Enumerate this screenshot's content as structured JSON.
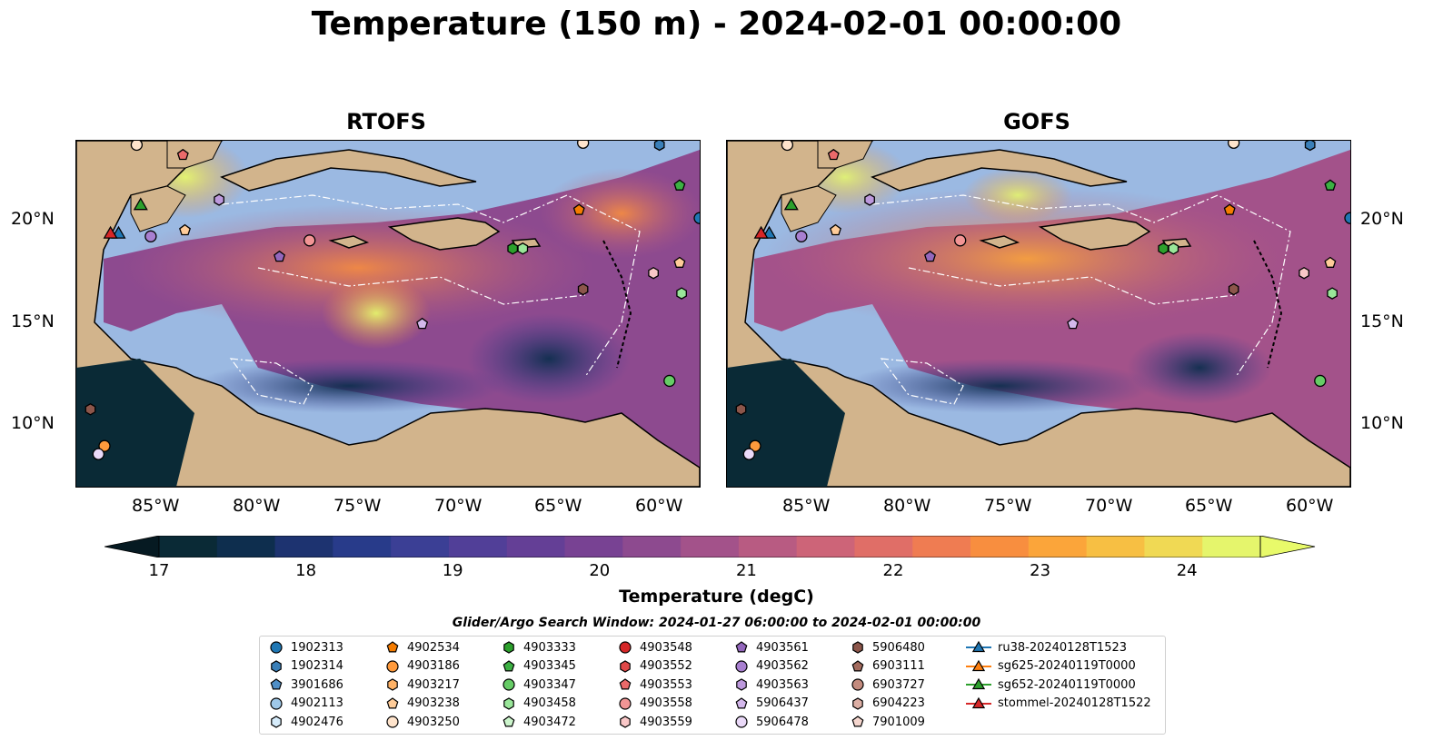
{
  "title": "Temperature (150 m) - 2024-02-01 00:00:00",
  "panels": [
    {
      "title": "RTOFS"
    },
    {
      "title": "GOFS"
    }
  ],
  "lon_ticks": [
    "85°W",
    "80°W",
    "75°W",
    "70°W",
    "65°W",
    "60°W"
  ],
  "lat_ticks": [
    "20°N",
    "15°N",
    "10°N"
  ],
  "colorbar": {
    "label": "Temperature (degC)",
    "min": 17,
    "max": 24.5,
    "tick_labels": [
      "17",
      "18",
      "19",
      "20",
      "21",
      "22",
      "23",
      "24"
    ],
    "colors": [
      "#0a2a36",
      "#0e2e4e",
      "#1d3370",
      "#283b8a",
      "#3b3f95",
      "#513f98",
      "#643f96",
      "#784293",
      "#8d4a8f",
      "#a3528a",
      "#b85b82",
      "#cd6478",
      "#e06e67",
      "#ef7c52",
      "#f88e3f",
      "#fba53a",
      "#f7bf43",
      "#f0d954",
      "#e5f56c"
    ],
    "under_color": "#061a22",
    "over_color": "#e8fa6a"
  },
  "search_window": "Glider/Argo Search Window: 2024-01-27 06:00:00 to 2024-02-01 00:00:00",
  "legend": [
    {
      "label": "1902313",
      "marker": "circle",
      "color": "#1f77b4"
    },
    {
      "label": "1902314",
      "marker": "hexagon",
      "color": "#3a7fb8"
    },
    {
      "label": "3901686",
      "marker": "pentagon",
      "color": "#4f8fc7"
    },
    {
      "label": "4902113",
      "marker": "circle",
      "color": "#9fc8e8"
    },
    {
      "label": "4902476",
      "marker": "hexagon",
      "color": "#d6ecfb"
    },
    {
      "label": "4902534",
      "marker": "pentagon",
      "color": "#f57c00"
    },
    {
      "label": "4903186",
      "marker": "circle",
      "color": "#ff9a3c"
    },
    {
      "label": "4903217",
      "marker": "hexagon",
      "color": "#ffb266"
    },
    {
      "label": "4903238",
      "marker": "pentagon",
      "color": "#ffcc99"
    },
    {
      "label": "4903250",
      "marker": "circle",
      "color": "#ffe4cc"
    },
    {
      "label": "4903333",
      "marker": "hexagon",
      "color": "#2ca02c"
    },
    {
      "label": "4903345",
      "marker": "pentagon",
      "color": "#3cb043"
    },
    {
      "label": "4903347",
      "marker": "circle",
      "color": "#66cc66"
    },
    {
      "label": "4903458",
      "marker": "hexagon",
      "color": "#99e699"
    },
    {
      "label": "4903472",
      "marker": "pentagon",
      "color": "#ccf5cc"
    },
    {
      "label": "4903548",
      "marker": "circle",
      "color": "#d62728"
    },
    {
      "label": "4903552",
      "marker": "hexagon",
      "color": "#e04848"
    },
    {
      "label": "4903553",
      "marker": "pentagon",
      "color": "#ea6a6a"
    },
    {
      "label": "4903558",
      "marker": "circle",
      "color": "#f29595"
    },
    {
      "label": "4903559",
      "marker": "hexagon",
      "color": "#f9c7c7"
    },
    {
      "label": "4903561",
      "marker": "pentagon",
      "color": "#9467bd"
    },
    {
      "label": "4903562",
      "marker": "circle",
      "color": "#a87fd0"
    },
    {
      "label": "4903563",
      "marker": "hexagon",
      "color": "#bd99dd"
    },
    {
      "label": "5906437",
      "marker": "pentagon",
      "color": "#d4b8ec"
    },
    {
      "label": "5906478",
      "marker": "circle",
      "color": "#ead9f8"
    },
    {
      "label": "5906480",
      "marker": "hexagon",
      "color": "#8c564b"
    },
    {
      "label": "6903111",
      "marker": "pentagon",
      "color": "#a36b5e"
    },
    {
      "label": "6903727",
      "marker": "circle",
      "color": "#c38b7e"
    },
    {
      "label": "6904223",
      "marker": "hexagon",
      "color": "#dcaea4"
    },
    {
      "label": "7901009",
      "marker": "pentagon",
      "color": "#f5d6ce"
    },
    {
      "label": "ru38-20240128T1523",
      "marker": "triangle-line",
      "color": "#1f77b4"
    },
    {
      "label": "sg625-20240119T0000",
      "marker": "triangle-line",
      "color": "#ff7f0e"
    },
    {
      "label": "sg652-20240119T0000",
      "marker": "triangle-line",
      "color": "#2ca02c"
    },
    {
      "label": "stommel-20240128T1522",
      "marker": "triangle-line",
      "color": "#d62728"
    }
  ],
  "map_markers": [
    {
      "ref": "1902313",
      "lon": -58.0,
      "lat": 20.2
    },
    {
      "ref": "1902314",
      "lon": -60.0,
      "lat": 23.8
    },
    {
      "ref": "4903345",
      "lon": -59.0,
      "lat": 21.8
    },
    {
      "ref": "4902534",
      "lon": -64.0,
      "lat": 20.6
    },
    {
      "ref": "4903333",
      "lon": -67.3,
      "lat": 18.7
    },
    {
      "ref": "4903458",
      "lon": -66.8,
      "lat": 18.7
    },
    {
      "ref": "4903238",
      "lon": -59.0,
      "lat": 18.0
    },
    {
      "ref": "4903559",
      "lon": -60.3,
      "lat": 17.5
    },
    {
      "ref": "5906480",
      "lon": -63.8,
      "lat": 16.7
    },
    {
      "ref": "4903458",
      "lon": -58.9,
      "lat": 16.5
    },
    {
      "ref": "4903347",
      "lon": -59.5,
      "lat": 12.2
    },
    {
      "ref": "4903553",
      "lon": -83.7,
      "lat": 23.3
    },
    {
      "ref": "4903563",
      "lon": -81.9,
      "lat": 21.1
    },
    {
      "ref": "4903238",
      "lon": -83.6,
      "lat": 19.6
    },
    {
      "ref": "4903562",
      "lon": -85.3,
      "lat": 19.3
    },
    {
      "ref": "4903558",
      "lon": -77.4,
      "lat": 19.1
    },
    {
      "ref": "4903561",
      "lon": -78.9,
      "lat": 18.3
    },
    {
      "ref": "5906437",
      "lon": -71.8,
      "lat": 15.0
    },
    {
      "ref": "5906480",
      "lon": -88.3,
      "lat": 10.8
    },
    {
      "ref": "4903186",
      "lon": -87.6,
      "lat": 9.0
    },
    {
      "ref": "5906478",
      "lon": -87.9,
      "lat": 8.6
    },
    {
      "ref": "4903250",
      "lon": -86.0,
      "lat": 23.8
    },
    {
      "ref": "4903250",
      "lon": -63.8,
      "lat": 23.9
    },
    {
      "ref": "sg652-20240119T0000",
      "lon": -85.8,
      "lat": 20.8
    },
    {
      "ref": "ru38-20240128T1523",
      "lon": -86.9,
      "lat": 19.4
    },
    {
      "ref": "stommel-20240128T1522",
      "lon": -87.3,
      "lat": 19.4
    }
  ]
}
